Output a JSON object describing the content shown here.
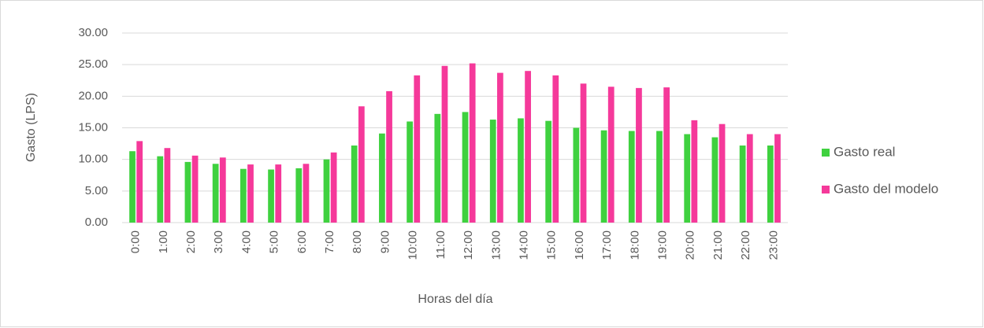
{
  "chart_data": {
    "type": "bar",
    "x_label": "Horas del día",
    "y_label": "Gasto (LPS)",
    "categories": [
      "0:00",
      "1:00",
      "2:00",
      "3:00",
      "4:00",
      "5:00",
      "6:00",
      "7:00",
      "8:00",
      "9:00",
      "10:00",
      "11:00",
      "12:00",
      "13:00",
      "14:00",
      "15:00",
      "16:00",
      "17:00",
      "18:00",
      "19:00",
      "20:00",
      "21:00",
      "22:00",
      "23:00"
    ],
    "series": [
      {
        "name": "Gasto real",
        "color": "#3fd13f",
        "values": [
          11.3,
          10.5,
          9.6,
          9.3,
          8.5,
          8.4,
          8.6,
          10.0,
          12.2,
          14.1,
          16.0,
          17.2,
          17.5,
          16.3,
          16.5,
          16.1,
          15.0,
          14.6,
          14.5,
          14.5,
          14.0,
          13.5,
          12.2,
          12.2
        ]
      },
      {
        "name": "Gasto del modelo",
        "color": "#f5399a",
        "values": [
          12.9,
          11.8,
          10.6,
          10.3,
          9.2,
          9.2,
          9.3,
          11.1,
          18.4,
          20.8,
          23.3,
          24.8,
          25.2,
          23.7,
          24.0,
          23.3,
          22.0,
          21.5,
          21.3,
          21.4,
          16.2,
          15.6,
          14.0,
          14.0
        ]
      }
    ],
    "ylim": [
      0,
      30
    ],
    "yticks": [
      {
        "value": 0,
        "label": "0.00"
      },
      {
        "value": 5,
        "label": "5.00"
      },
      {
        "value": 10,
        "label": "10.00"
      },
      {
        "value": 15,
        "label": "15.00"
      },
      {
        "value": 20,
        "label": "20.00"
      },
      {
        "value": 25,
        "label": "25.00"
      },
      {
        "value": 30,
        "label": "30.00"
      }
    ],
    "grid": true,
    "legend": "right"
  }
}
